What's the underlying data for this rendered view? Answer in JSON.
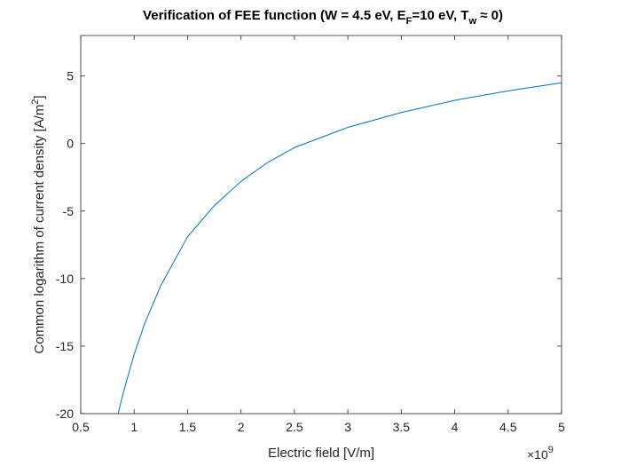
{
  "chart_data": {
    "type": "line",
    "title": {
      "prefix": "Verification of FEE function (W = 4.5 eV, E",
      "sub1": "F",
      "middle": "=10 eV, T",
      "sub2": "w",
      "suffix": " ≈ 0)"
    },
    "xlabel": "Electric field [V/m]",
    "ylabel": {
      "main": "Common logarithm of current density [A/m",
      "sup": "2",
      "end": "]"
    },
    "x_exponent": {
      "base": "×10",
      "power": "9"
    },
    "xlim": [
      0.5,
      5
    ],
    "ylim": [
      -20,
      8
    ],
    "xticks": [
      0.5,
      1,
      1.5,
      2,
      2.5,
      3,
      3.5,
      4,
      4.5,
      5
    ],
    "yticks": [
      -20,
      -15,
      -10,
      -5,
      0,
      5
    ],
    "xtick_labels": [
      "0.5",
      "1",
      "1.5",
      "2",
      "2.5",
      "3",
      "3.5",
      "4",
      "4.5",
      "5"
    ],
    "ytick_labels": [
      "-20",
      "-15",
      "-10",
      "-5",
      "0",
      "5"
    ],
    "grid": false,
    "series": [
      {
        "color": "#0072bd",
        "x": [
          0.85,
          0.9,
          1.0,
          1.1,
          1.25,
          1.5,
          1.75,
          2.0,
          2.25,
          2.5,
          3.0,
          3.5,
          4.0,
          4.5,
          5.0
        ],
        "y": [
          -20.0,
          -18.4,
          -15.6,
          -13.3,
          -10.5,
          -6.9,
          -4.6,
          -2.8,
          -1.4,
          -0.3,
          1.2,
          2.3,
          3.2,
          3.9,
          4.5
        ]
      }
    ]
  }
}
